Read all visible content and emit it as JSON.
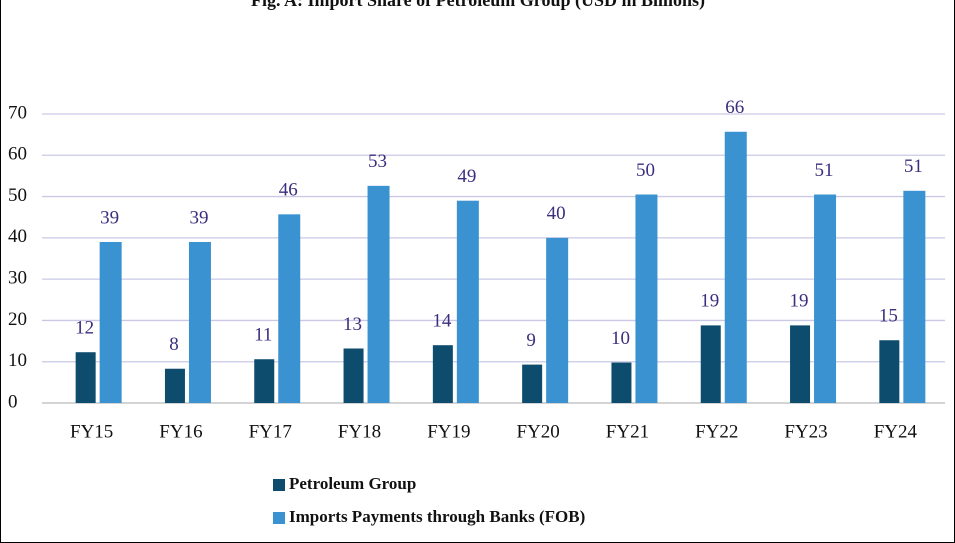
{
  "chart_data": {
    "type": "bar",
    "title": "Fig. A: Import Share of Petroleum Group (USD in Billions)",
    "categories": [
      "FY15",
      "FY16",
      "FY17",
      "FY18",
      "FY19",
      "FY20",
      "FY21",
      "FY22",
      "FY23",
      "FY24"
    ],
    "series": [
      {
        "name": "Petroleum Group",
        "color": "#0d4c6d",
        "values": [
          12.3,
          8.3,
          10.6,
          13.2,
          14,
          9.3,
          9.8,
          18.8,
          18.8,
          15.2
        ],
        "value_labels": [
          "12",
          "8",
          "11",
          "13",
          "14",
          "9",
          "10",
          "19",
          "19",
          "15"
        ]
      },
      {
        "name": "Imports Payments through Banks (FOB)",
        "color": "#3a93d0",
        "values": [
          39,
          39,
          45.7,
          52.6,
          49,
          40,
          50.5,
          65.7,
          50.5,
          51.4
        ],
        "value_labels": [
          "39",
          "39",
          "46",
          "53",
          "49",
          "40",
          "50",
          "66",
          "51",
          "51"
        ]
      }
    ],
    "ylim": [
      0,
      70
    ],
    "yticks": [
      0,
      10,
      20,
      30,
      40,
      50,
      60,
      70
    ],
    "grid": true,
    "legend": "bottom"
  }
}
